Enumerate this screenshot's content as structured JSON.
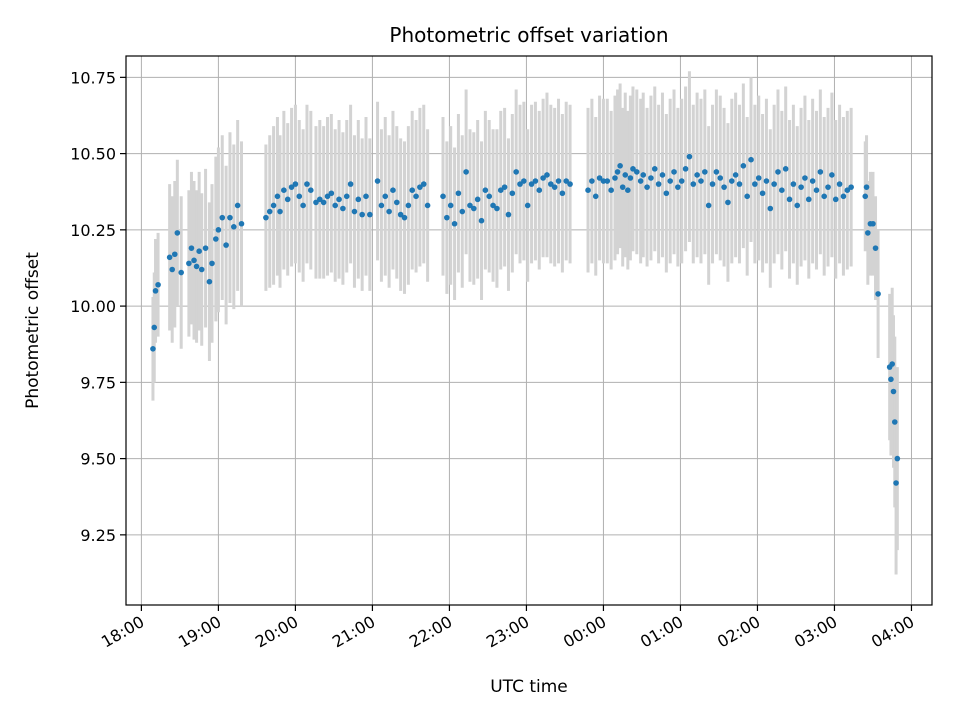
{
  "chart_data": {
    "type": "scatter",
    "title": "Photometric offset variation",
    "xlabel": "UTC time",
    "ylabel": "Photometric offset",
    "x_ticks": [
      "18:00",
      "19:00",
      "20:00",
      "21:00",
      "22:00",
      "23:00",
      "00:00",
      "01:00",
      "02:00",
      "03:00",
      "04:00"
    ],
    "y_ticks": [
      "9.25",
      "9.50",
      "9.75",
      "10.00",
      "10.25",
      "10.50",
      "10.75"
    ],
    "xlim": [
      "17:48",
      "04:16"
    ],
    "ylim": [
      9.02,
      10.82
    ],
    "grid": true,
    "colors": {
      "points": "#1f77b4",
      "errorbars": "#d3d3d3",
      "grid": "#b0b0b0"
    },
    "series": [
      {
        "points": [
          [
            "18:09",
            9.86,
            0.17
          ],
          [
            "18:10",
            9.93,
            0.18
          ],
          [
            "18:11",
            10.05,
            0.17
          ],
          [
            "18:13",
            10.07,
            0.17
          ],
          [
            "18:22",
            10.16,
            0.24
          ],
          [
            "18:24",
            10.12,
            0.24
          ],
          [
            "18:26",
            10.17,
            0.24
          ],
          [
            "18:28",
            10.24,
            0.24
          ],
          [
            "18:31",
            10.11,
            0.25
          ],
          [
            "18:37",
            10.14,
            0.24
          ],
          [
            "18:39",
            10.19,
            0.25
          ],
          [
            "18:41",
            10.15,
            0.26
          ],
          [
            "18:43",
            10.13,
            0.25
          ],
          [
            "18:45",
            10.18,
            0.26
          ],
          [
            "18:47",
            10.12,
            0.25
          ],
          [
            "18:50",
            10.19,
            0.26
          ],
          [
            "18:53",
            10.08,
            0.26
          ],
          [
            "18:55",
            10.14,
            0.26
          ],
          [
            "18:58",
            10.22,
            0.27
          ],
          [
            "19:00",
            10.25,
            0.27
          ],
          [
            "19:03",
            10.29,
            0.27
          ],
          [
            "19:06",
            10.2,
            0.26
          ],
          [
            "19:09",
            10.29,
            0.28
          ],
          [
            "19:12",
            10.26,
            0.27
          ],
          [
            "19:15",
            10.33,
            0.28
          ],
          [
            "19:18",
            10.27,
            0.27
          ],
          [
            "19:37",
            10.29,
            0.24
          ],
          [
            "19:40",
            10.31,
            0.25
          ],
          [
            "19:43",
            10.33,
            0.26
          ],
          [
            "19:46",
            10.36,
            0.26
          ],
          [
            "19:48",
            10.31,
            0.25
          ],
          [
            "19:51",
            10.38,
            0.26
          ],
          [
            "19:54",
            10.35,
            0.25
          ],
          [
            "19:57",
            10.39,
            0.26
          ],
          [
            "20:00",
            10.4,
            0.26
          ],
          [
            "20:03",
            10.36,
            0.25
          ],
          [
            "20:06",
            10.33,
            0.25
          ],
          [
            "20:09",
            10.4,
            0.26
          ],
          [
            "20:12",
            10.38,
            0.26
          ],
          [
            "20:16",
            10.34,
            0.25
          ],
          [
            "20:19",
            10.35,
            0.26
          ],
          [
            "20:22",
            10.34,
            0.25
          ],
          [
            "20:25",
            10.36,
            0.26
          ],
          [
            "20:28",
            10.37,
            0.26
          ],
          [
            "20:31",
            10.33,
            0.25
          ],
          [
            "20:34",
            10.35,
            0.26
          ],
          [
            "20:37",
            10.32,
            0.25
          ],
          [
            "20:40",
            10.36,
            0.25
          ],
          [
            "20:43",
            10.4,
            0.26
          ],
          [
            "20:46",
            10.31,
            0.25
          ],
          [
            "20:49",
            10.35,
            0.26
          ],
          [
            "20:52",
            10.3,
            0.25
          ],
          [
            "20:55",
            10.36,
            0.26
          ],
          [
            "20:58",
            10.3,
            0.25
          ],
          [
            "21:04",
            10.41,
            0.26
          ],
          [
            "21:07",
            10.33,
            0.25
          ],
          [
            "21:10",
            10.36,
            0.26
          ],
          [
            "21:13",
            10.31,
            0.25
          ],
          [
            "21:16",
            10.38,
            0.26
          ],
          [
            "21:19",
            10.34,
            0.25
          ],
          [
            "21:22",
            10.3,
            0.25
          ],
          [
            "21:25",
            10.29,
            0.25
          ],
          [
            "21:28",
            10.33,
            0.26
          ],
          [
            "21:31",
            10.38,
            0.26
          ],
          [
            "21:34",
            10.36,
            0.25
          ],
          [
            "21:37",
            10.39,
            0.26
          ],
          [
            "21:40",
            10.4,
            0.26
          ],
          [
            "21:43",
            10.33,
            0.25
          ],
          [
            "21:55",
            10.36,
            0.26
          ],
          [
            "21:58",
            10.29,
            0.25
          ],
          [
            "22:01",
            10.33,
            0.26
          ],
          [
            "22:04",
            10.27,
            0.25
          ],
          [
            "22:07",
            10.37,
            0.26
          ],
          [
            "22:10",
            10.31,
            0.25
          ],
          [
            "22:13",
            10.44,
            0.27
          ],
          [
            "22:16",
            10.33,
            0.25
          ],
          [
            "22:19",
            10.32,
            0.25
          ],
          [
            "22:22",
            10.35,
            0.26
          ],
          [
            "22:25",
            10.28,
            0.26
          ],
          [
            "22:28",
            10.38,
            0.26
          ],
          [
            "22:31",
            10.36,
            0.25
          ],
          [
            "22:34",
            10.33,
            0.25
          ],
          [
            "22:37",
            10.32,
            0.26
          ],
          [
            "22:40",
            10.38,
            0.26
          ],
          [
            "22:43",
            10.39,
            0.26
          ],
          [
            "22:46",
            10.3,
            0.25
          ],
          [
            "22:49",
            10.37,
            0.26
          ],
          [
            "22:52",
            10.44,
            0.27
          ],
          [
            "22:55",
            10.4,
            0.26
          ],
          [
            "22:58",
            10.41,
            0.26
          ],
          [
            "23:01",
            10.33,
            0.25
          ],
          [
            "23:04",
            10.4,
            0.26
          ],
          [
            "23:07",
            10.41,
            0.26
          ],
          [
            "23:10",
            10.38,
            0.26
          ],
          [
            "23:13",
            10.42,
            0.26
          ],
          [
            "23:16",
            10.43,
            0.27
          ],
          [
            "23:19",
            10.4,
            0.26
          ],
          [
            "23:22",
            10.39,
            0.26
          ],
          [
            "23:25",
            10.41,
            0.27
          ],
          [
            "23:28",
            10.37,
            0.26
          ],
          [
            "23:31",
            10.41,
            0.26
          ],
          [
            "23:34",
            10.4,
            0.26
          ],
          [
            "23:48",
            10.38,
            0.27
          ],
          [
            "23:51",
            10.41,
            0.27
          ],
          [
            "23:54",
            10.36,
            0.26
          ],
          [
            "23:57",
            10.42,
            0.27
          ],
          [
            "24:00",
            10.41,
            0.27
          ],
          [
            "24:03",
            10.41,
            0.27
          ],
          [
            "24:06",
            10.38,
            0.26
          ],
          [
            "24:09",
            10.42,
            0.27
          ],
          [
            "24:11",
            10.44,
            0.27
          ],
          [
            "24:13",
            10.46,
            0.27
          ],
          [
            "24:15",
            10.39,
            0.26
          ],
          [
            "24:17",
            10.43,
            0.27
          ],
          [
            "24:19",
            10.38,
            0.26
          ],
          [
            "24:21",
            10.42,
            0.27
          ],
          [
            "24:23",
            10.45,
            0.27
          ],
          [
            "24:26",
            10.44,
            0.27
          ],
          [
            "24:29",
            10.41,
            0.27
          ],
          [
            "24:31",
            10.43,
            0.27
          ],
          [
            "24:34",
            10.39,
            0.26
          ],
          [
            "24:37",
            10.42,
            0.27
          ],
          [
            "24:40",
            10.45,
            0.27
          ],
          [
            "24:43",
            10.4,
            0.26
          ],
          [
            "24:46",
            10.43,
            0.27
          ],
          [
            "24:49",
            10.37,
            0.26
          ],
          [
            "24:52",
            10.41,
            0.27
          ],
          [
            "24:55",
            10.44,
            0.27
          ],
          [
            "24:58",
            10.39,
            0.26
          ],
          [
            "25:01",
            10.41,
            0.27
          ],
          [
            "25:04",
            10.45,
            0.27
          ],
          [
            "25:07",
            10.49,
            0.28
          ],
          [
            "25:10",
            10.4,
            0.26
          ],
          [
            "25:13",
            10.43,
            0.27
          ],
          [
            "25:16",
            10.41,
            0.27
          ],
          [
            "25:19",
            10.44,
            0.27
          ],
          [
            "25:22",
            10.33,
            0.26
          ],
          [
            "25:25",
            10.4,
            0.26
          ],
          [
            "25:28",
            10.44,
            0.27
          ],
          [
            "25:31",
            10.42,
            0.27
          ],
          [
            "25:34",
            10.39,
            0.26
          ],
          [
            "25:37",
            10.34,
            0.26
          ],
          [
            "25:40",
            10.41,
            0.27
          ],
          [
            "25:43",
            10.43,
            0.27
          ],
          [
            "25:46",
            10.4,
            0.26
          ],
          [
            "25:49",
            10.46,
            0.27
          ],
          [
            "25:52",
            10.36,
            0.26
          ],
          [
            "25:55",
            10.48,
            0.27
          ],
          [
            "25:58",
            10.4,
            0.26
          ],
          [
            "26:01",
            10.42,
            0.27
          ],
          [
            "26:04",
            10.37,
            0.26
          ],
          [
            "26:07",
            10.41,
            0.27
          ],
          [
            "26:10",
            10.32,
            0.26
          ],
          [
            "26:13",
            10.4,
            0.26
          ],
          [
            "26:16",
            10.44,
            0.27
          ],
          [
            "26:19",
            10.38,
            0.26
          ],
          [
            "26:22",
            10.45,
            0.27
          ],
          [
            "26:25",
            10.35,
            0.26
          ],
          [
            "26:28",
            10.4,
            0.26
          ],
          [
            "26:31",
            10.33,
            0.26
          ],
          [
            "26:34",
            10.39,
            0.26
          ],
          [
            "26:37",
            10.42,
            0.27
          ],
          [
            "26:40",
            10.35,
            0.26
          ],
          [
            "26:43",
            10.41,
            0.27
          ],
          [
            "26:46",
            10.38,
            0.26
          ],
          [
            "26:49",
            10.44,
            0.27
          ],
          [
            "26:52",
            10.36,
            0.26
          ],
          [
            "26:55",
            10.39,
            0.26
          ],
          [
            "26:58",
            10.43,
            0.27
          ],
          [
            "27:01",
            10.35,
            0.26
          ],
          [
            "27:04",
            10.4,
            0.26
          ],
          [
            "27:07",
            10.36,
            0.26
          ],
          [
            "27:10",
            10.38,
            0.26
          ],
          [
            "27:13",
            10.39,
            0.26
          ],
          [
            "27:24",
            10.36,
            0.18
          ],
          [
            "27:25",
            10.39,
            0.17
          ],
          [
            "27:26",
            10.24,
            0.17
          ],
          [
            "27:28",
            10.27,
            0.17
          ],
          [
            "27:30",
            10.27,
            0.17
          ],
          [
            "27:32",
            10.19,
            0.17
          ],
          [
            "27:34",
            10.04,
            0.21
          ],
          [
            "27:43",
            9.8,
            0.24
          ],
          [
            "27:44",
            9.76,
            0.25
          ],
          [
            "27:45",
            9.81,
            0.25
          ],
          [
            "27:46",
            9.72,
            0.25
          ],
          [
            "27:47",
            9.62,
            0.28
          ],
          [
            "27:48",
            9.42,
            0.3
          ],
          [
            "27:49",
            9.5,
            0.3
          ]
        ]
      }
    ]
  }
}
